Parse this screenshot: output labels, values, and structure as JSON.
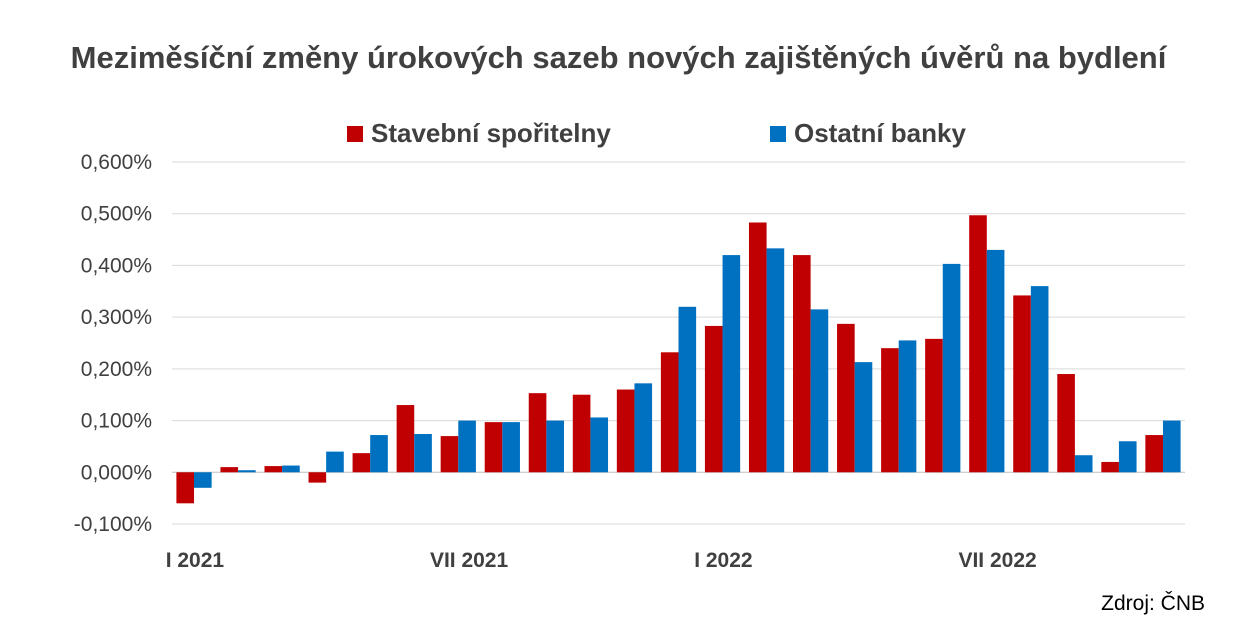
{
  "chart_data": {
    "type": "bar",
    "title": "Meziměsíční změny úrokových sazeb nových zajištěných úvěrů na bydlení",
    "xlabel": "",
    "ylabel": "",
    "ylim": [
      -0.1,
      0.6
    ],
    "yticks": [
      -0.1,
      0.0,
      0.1,
      0.2,
      0.3,
      0.4,
      0.5,
      0.6
    ],
    "ytick_labels": [
      "-0,100%",
      "0,000%",
      "0,100%",
      "0,200%",
      "0,300%",
      "0,400%",
      "0,500%",
      "0,600%"
    ],
    "categories": [
      "I 2021",
      "II 2021",
      "III 2021",
      "IV 2021",
      "V 2021",
      "VI 2021",
      "VII 2021",
      "VIII 2021",
      "IX 2021",
      "X 2021",
      "XI 2021",
      "XII 2021",
      "I 2022",
      "II 2022",
      "III 2022",
      "IV 2022",
      "V 2022",
      "VI 2022",
      "VII 2022",
      "VIII 2022",
      "IX 2022",
      "X 2022"
    ],
    "shown_x_labels": [
      {
        "index": 0,
        "label": "I 2021"
      },
      {
        "index": 6,
        "label": "VII 2021"
      },
      {
        "index": 12,
        "label": "I 2022"
      },
      {
        "index": 18,
        "label": "VII 2022"
      }
    ],
    "series": [
      {
        "name": "Stavební spořitelny",
        "color": "#c00000",
        "values": [
          -0.06,
          0.01,
          0.012,
          -0.02,
          0.037,
          0.13,
          0.07,
          0.097,
          0.153,
          0.15,
          0.16,
          0.232,
          0.283,
          0.483,
          0.42,
          0.287,
          0.24,
          0.258,
          0.497,
          0.342,
          0.19,
          0.02
        ]
      },
      {
        "name": "Ostatní banky",
        "color": "#0070c0",
        "values": [
          -0.03,
          0.004,
          0.013,
          0.04,
          0.072,
          0.074,
          0.1,
          0.097,
          0.1,
          0.106,
          0.172,
          0.32,
          0.42,
          0.433,
          0.315,
          0.213,
          0.255,
          0.403,
          0.43,
          0.36,
          0.033,
          0.06
        ]
      }
    ],
    "extra_last": {
      "Stavební spořitelny": 0.072,
      "Ostatní banky": 0.1
    },
    "grid": true,
    "legend_placement": "top-center"
  },
  "source": "Zdroj: ČNB"
}
